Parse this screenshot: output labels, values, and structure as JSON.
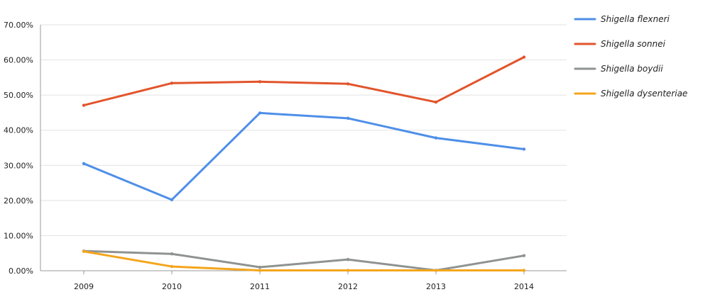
{
  "chart_data": {
    "type": "line",
    "x": [
      "2009",
      "2010",
      "2011",
      "2012",
      "2013",
      "2014"
    ],
    "x_tick_labels": [
      "2009",
      "2010",
      "2011",
      "2012",
      "2013",
      "2014"
    ],
    "y_tick_labels": [
      "0.00%",
      "10.00%",
      "20.00%",
      "30.00%",
      "40.00%",
      "50.00%",
      "60.00%",
      "70.00%"
    ],
    "ylim": [
      0,
      70
    ],
    "grid": true,
    "legend_position": "right",
    "series": [
      {
        "name": "Shigella flexneri",
        "color": "#4e8fe8",
        "values": [
          30.5,
          20.2,
          44.9,
          43.4,
          37.8,
          34.6
        ]
      },
      {
        "name": "Shigella sonnei",
        "color": "#e2542b",
        "values": [
          47.1,
          53.4,
          53.8,
          53.2,
          48.0,
          60.8
        ]
      },
      {
        "name": "Shigella boydii",
        "color": "#8e9390",
        "values": [
          5.6,
          4.8,
          1.0,
          3.2,
          0.1,
          4.3
        ]
      },
      {
        "name": "Shigella dysenteriae",
        "color": "#f4a51c",
        "values": [
          5.5,
          1.2,
          0.1,
          0.1,
          0.1,
          0.1
        ]
      }
    ]
  }
}
